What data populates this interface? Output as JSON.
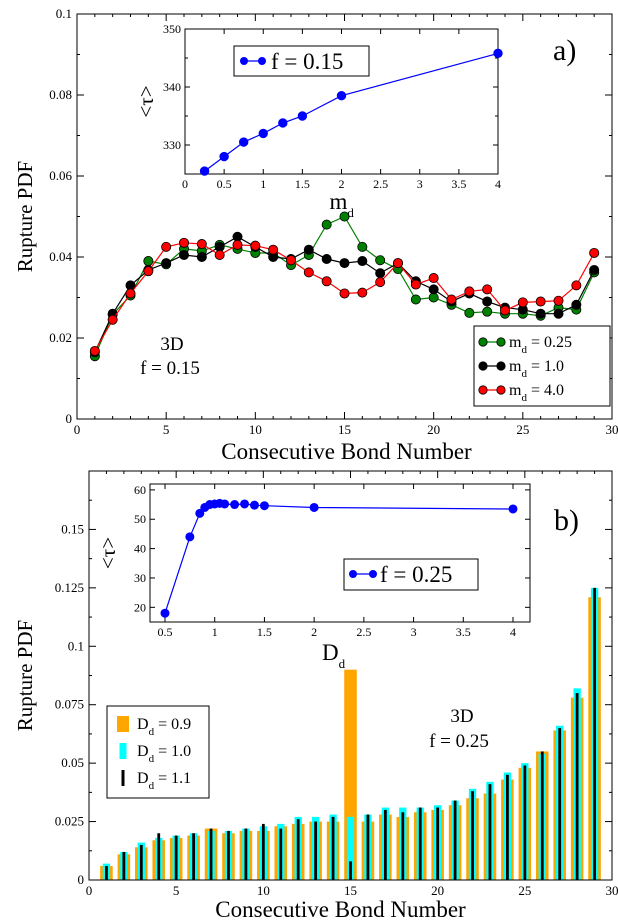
{
  "chart_data": [
    {
      "panel": "a)",
      "type": "line",
      "xlabel": "Consecutive Bond Number",
      "ylabel": "Rupture PDF",
      "xlim": [
        0,
        30
      ],
      "ylim": [
        0,
        0.1
      ],
      "xticks": [
        "0",
        "5",
        "10",
        "15",
        "20",
        "25",
        "30"
      ],
      "yticks": [
        "0",
        "0.02",
        "0.04",
        "0.06",
        "0.08",
        "0.1"
      ],
      "annotation": [
        "3D",
        "f = 0.15"
      ],
      "legend_position": "bottom-right",
      "x": [
        1,
        2,
        3,
        4,
        5,
        6,
        7,
        8,
        9,
        10,
        11,
        12,
        13,
        14,
        15,
        16,
        17,
        18,
        19,
        20,
        21,
        22,
        23,
        24,
        25,
        26,
        27,
        28,
        29
      ],
      "series": [
        {
          "name": "m_d = 0.25",
          "label_main": "m",
          "label_sub": "d",
          "label_tail": " = 0.25",
          "color": "#008000",
          "values": [
            0.0155,
            0.0258,
            0.0305,
            0.039,
            0.0382,
            0.042,
            0.0415,
            0.043,
            0.042,
            0.041,
            0.041,
            0.038,
            0.0405,
            0.048,
            0.05,
            0.0425,
            0.0392,
            0.037,
            0.0295,
            0.03,
            0.0282,
            0.0262,
            0.0265,
            0.026,
            0.026,
            0.0255,
            0.0275,
            0.027,
            0.0362
          ]
        },
        {
          "name": "m_d = 1.0",
          "label_main": "m",
          "label_sub": "d",
          "label_tail": " = 1.0",
          "color": "#000000",
          "values": [
            0.0165,
            0.026,
            0.033,
            0.0368,
            0.0385,
            0.0405,
            0.04,
            0.0425,
            0.045,
            0.0425,
            0.04,
            0.0395,
            0.0418,
            0.0395,
            0.0385,
            0.039,
            0.036,
            0.0385,
            0.034,
            0.032,
            0.029,
            0.031,
            0.029,
            0.0275,
            0.027,
            0.026,
            0.026,
            0.0282,
            0.0368
          ]
        },
        {
          "name": "m_d = 4.0",
          "label_main": "m",
          "label_sub": "d",
          "label_tail": " = 4.0",
          "color": "#ff0000",
          "values": [
            0.0168,
            0.0245,
            0.031,
            0.0365,
            0.0425,
            0.0435,
            0.0432,
            0.0405,
            0.043,
            0.0428,
            0.0418,
            0.0392,
            0.0362,
            0.034,
            0.031,
            0.0312,
            0.0338,
            0.0385,
            0.0332,
            0.0348,
            0.0295,
            0.0315,
            0.032,
            0.0268,
            0.0288,
            0.029,
            0.0292,
            0.033,
            0.041
          ]
        }
      ],
      "inset": {
        "type": "line",
        "xlabel_main": "m",
        "xlabel_sub": "d",
        "ylabel": "<τ>",
        "xlim": [
          0,
          4
        ],
        "ylim": [
          325,
          350
        ],
        "xticks": [
          "0",
          "0.5",
          "1",
          "1.5",
          "2",
          "2.5",
          "3",
          "3.5",
          "4"
        ],
        "yticks": [
          "330",
          "340",
          "350"
        ],
        "legend": "f = 0.15",
        "color": "#0000ff",
        "x": [
          0.25,
          0.5,
          0.75,
          1.0,
          1.25,
          1.5,
          2.0,
          4.0
        ],
        "y": [
          325.5,
          328.0,
          330.5,
          332.0,
          333.8,
          335.0,
          338.5,
          345.8
        ]
      }
    },
    {
      "panel": "b)",
      "type": "bar",
      "xlabel": "Consecutive Bond Number",
      "ylabel": "Rupture PDF",
      "xlim": [
        0,
        30
      ],
      "ylim": [
        0,
        0.175
      ],
      "xticks": [
        "0",
        "5",
        "10",
        "15",
        "20",
        "25",
        "30"
      ],
      "yticks": [
        "0",
        "0.025",
        "0.05",
        "0.075",
        "0.1",
        "0.125",
        "0.15"
      ],
      "annotation": [
        "3D",
        "f = 0.25"
      ],
      "legend_position": "bottom-left",
      "x": [
        1,
        2,
        3,
        4,
        5,
        6,
        7,
        8,
        9,
        10,
        11,
        12,
        13,
        14,
        15,
        16,
        17,
        18,
        19,
        20,
        21,
        22,
        23,
        24,
        25,
        26,
        27,
        28,
        29
      ],
      "series": [
        {
          "name": "D_d = 0.9",
          "label_main": "D",
          "label_sub": "d",
          "label_tail": " = 0.9",
          "color": "#ffa500",
          "values": [
            0.006,
            0.011,
            0.014,
            0.017,
            0.018,
            0.019,
            0.022,
            0.02,
            0.021,
            0.021,
            0.023,
            0.024,
            0.025,
            0.025,
            0.09,
            0.025,
            0.028,
            0.027,
            0.029,
            0.03,
            0.032,
            0.035,
            0.037,
            0.043,
            0.048,
            0.055,
            0.064,
            0.078,
            0.121
          ]
        },
        {
          "name": "D_d = 1.0",
          "label_main": "D",
          "label_sub": "d",
          "label_tail": " = 1.0",
          "color": "#00ffff",
          "values": [
            0.007,
            0.012,
            0.016,
            0.018,
            0.019,
            0.02,
            0.021,
            0.021,
            0.022,
            0.023,
            0.024,
            0.027,
            0.027,
            0.028,
            0.027,
            0.028,
            0.031,
            0.031,
            0.031,
            0.032,
            0.034,
            0.039,
            0.042,
            0.046,
            0.05,
            0.054,
            0.066,
            0.082,
            0.125
          ]
        },
        {
          "name": "D_d = 1.1",
          "label_main": "D",
          "label_sub": "d",
          "label_tail": " = 1.1",
          "color": "#000000",
          "values": [
            0.006,
            0.012,
            0.015,
            0.02,
            0.019,
            0.02,
            0.022,
            0.021,
            0.022,
            0.024,
            0.022,
            0.026,
            0.025,
            0.027,
            0.008,
            0.028,
            0.03,
            0.029,
            0.031,
            0.031,
            0.034,
            0.038,
            0.041,
            0.045,
            0.049,
            0.055,
            0.065,
            0.08,
            0.125
          ]
        }
      ],
      "inset": {
        "type": "line",
        "xlabel_main": "D",
        "xlabel_sub": "d",
        "ylabel": "<τ>",
        "xlim": [
          0.5,
          4
        ],
        "ylim": [
          15,
          62
        ],
        "xticks": [
          "0.5",
          "1",
          "1.5",
          "2",
          "2.5",
          "3",
          "3.5",
          "4"
        ],
        "yticks": [
          "20",
          "30",
          "40",
          "50",
          "60"
        ],
        "legend": "f = 0.25",
        "color": "#0000ff",
        "x": [
          0.5,
          0.75,
          0.85,
          0.9,
          0.95,
          1.0,
          1.05,
          1.1,
          1.2,
          1.3,
          1.4,
          1.5,
          2.0,
          4.0
        ],
        "y": [
          18.0,
          44.0,
          52.0,
          54.0,
          55.0,
          55.2,
          55.4,
          55.2,
          55.0,
          55.2,
          54.8,
          54.6,
          54.0,
          53.5
        ]
      }
    }
  ]
}
